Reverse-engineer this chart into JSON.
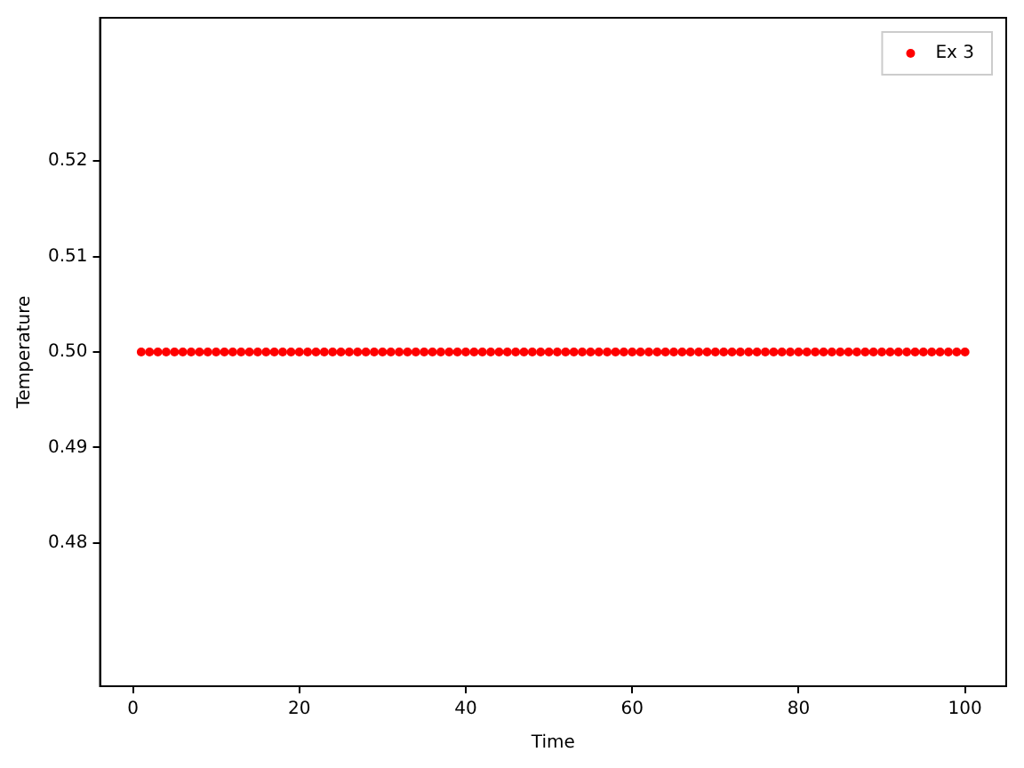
{
  "chart_data": {
    "type": "scatter",
    "xlabel": "Time",
    "ylabel": "Temperature",
    "x": [
      1,
      2,
      3,
      4,
      5,
      6,
      7,
      8,
      9,
      10,
      11,
      12,
      13,
      14,
      15,
      16,
      17,
      18,
      19,
      20,
      21,
      22,
      23,
      24,
      25,
      26,
      27,
      28,
      29,
      30,
      31,
      32,
      33,
      34,
      35,
      36,
      37,
      38,
      39,
      40,
      41,
      42,
      43,
      44,
      45,
      46,
      47,
      48,
      49,
      50,
      51,
      52,
      53,
      54,
      55,
      56,
      57,
      58,
      59,
      60,
      61,
      62,
      63,
      64,
      65,
      66,
      67,
      68,
      69,
      70,
      71,
      72,
      73,
      74,
      75,
      76,
      77,
      78,
      79,
      80,
      81,
      82,
      83,
      84,
      85,
      86,
      87,
      88,
      89,
      90,
      91,
      92,
      93,
      94,
      95,
      96,
      97,
      98,
      99,
      100
    ],
    "series": [
      {
        "name": "Ex 3",
        "color": "#ff0000",
        "values": [
          0.5,
          0.5,
          0.5,
          0.5,
          0.5,
          0.5,
          0.5,
          0.5,
          0.5,
          0.5,
          0.5,
          0.5,
          0.5,
          0.5,
          0.5,
          0.5,
          0.5,
          0.5,
          0.5,
          0.5,
          0.5,
          0.5,
          0.5,
          0.5,
          0.5,
          0.5,
          0.5,
          0.5,
          0.5,
          0.5,
          0.5,
          0.5,
          0.5,
          0.5,
          0.5,
          0.5,
          0.5,
          0.5,
          0.5,
          0.5,
          0.5,
          0.5,
          0.5,
          0.5,
          0.5,
          0.5,
          0.5,
          0.5,
          0.5,
          0.5,
          0.5,
          0.5,
          0.5,
          0.5,
          0.5,
          0.5,
          0.5,
          0.5,
          0.5,
          0.5,
          0.5,
          0.5,
          0.5,
          0.5,
          0.5,
          0.5,
          0.5,
          0.5,
          0.5,
          0.5,
          0.5,
          0.5,
          0.5,
          0.5,
          0.5,
          0.5,
          0.5,
          0.5,
          0.5,
          0.5,
          0.5,
          0.5,
          0.5,
          0.5,
          0.5,
          0.5,
          0.5,
          0.5,
          0.5,
          0.5,
          0.5,
          0.5,
          0.5,
          0.5,
          0.5,
          0.5,
          0.5,
          0.5,
          0.5,
          0.5
        ]
      }
    ],
    "xlim": [
      -3.95,
      104.95
    ],
    "xticks": [
      0,
      20,
      40,
      60,
      80,
      100
    ],
    "ylim": [
      0.465,
      0.535
    ],
    "yticks": [
      {
        "value": 0.48,
        "label": "0.48"
      },
      {
        "value": 0.49,
        "label": "0.49"
      },
      {
        "value": 0.5,
        "label": "0.50"
      },
      {
        "value": 0.51,
        "label": "0.51"
      },
      {
        "value": 0.52,
        "label": "0.52"
      }
    ],
    "grid": false,
    "legend": "top right",
    "marker": "circle"
  }
}
